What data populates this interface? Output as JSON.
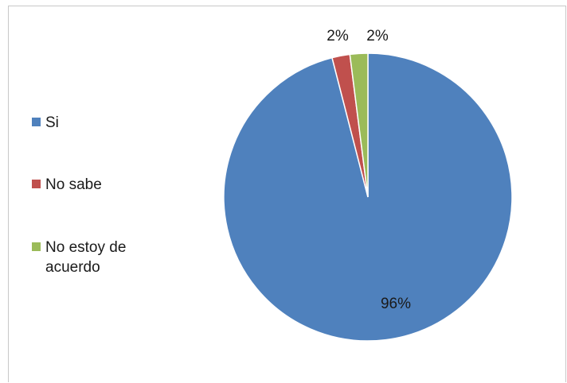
{
  "chart_data": {
    "type": "pie",
    "categories": [
      "Si",
      "No sabe",
      "No estoy de acuerdo"
    ],
    "values": [
      96,
      2,
      2
    ],
    "data_labels": [
      "96%",
      "2%",
      "2%"
    ],
    "colors": [
      "#4f81bd",
      "#c0504d",
      "#9bbb59"
    ],
    "legend": {
      "placement": "left",
      "entries": [
        "Si",
        "No sabe",
        "No estoy de acuerdo"
      ]
    },
    "title": ""
  }
}
